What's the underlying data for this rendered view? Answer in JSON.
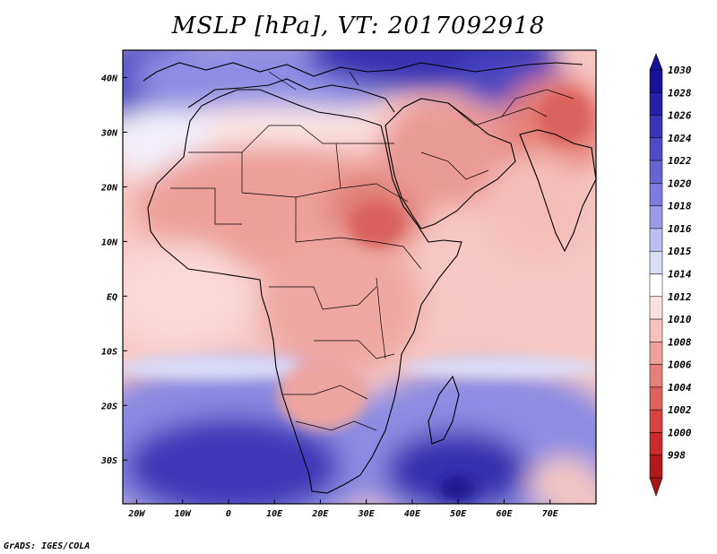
{
  "title": "MSLP [hPa], VT: 2017092918",
  "credit": "GrADS: IGES/COLA",
  "map": {
    "projection": "lat-lon",
    "lon_range": [
      -23,
      80
    ],
    "lat_range": [
      -38,
      45
    ],
    "lon_ticks": [
      "20W",
      "10W",
      "0",
      "10E",
      "20E",
      "30E",
      "40E",
      "50E",
      "60E",
      "70E"
    ],
    "lat_ticks": [
      "40N",
      "30N",
      "20N",
      "10N",
      "EQ",
      "10S",
      "20S",
      "30S"
    ],
    "field": "mean sea level pressure",
    "features": {
      "low_centers": [
        "Sudan trough",
        "Arabian Peninsula",
        "Pakistan/India heat low"
      ],
      "high_centers": [
        "Mediterranean/Europe",
        "South Atlantic high",
        "South Indian Ocean high"
      ]
    }
  },
  "colorbar": {
    "labels": [
      "1030",
      "1028",
      "1026",
      "1024",
      "1022",
      "1020",
      "1018",
      "1016",
      "1015",
      "1014",
      "1012",
      "1010",
      "1008",
      "1006",
      "1004",
      "1002",
      "1000",
      "998"
    ],
    "colors": [
      "#16129a",
      "#2520a6",
      "#3a35b8",
      "#4f4bc6",
      "#6663d2",
      "#7e7cde",
      "#9b9ae8",
      "#bcbdf2",
      "#dadcf8",
      "#ffffff",
      "#fde0de",
      "#f7c2be",
      "#efa09b",
      "#e67f79",
      "#de625c",
      "#d54441",
      "#c92b2b",
      "#b11a1a"
    ]
  }
}
